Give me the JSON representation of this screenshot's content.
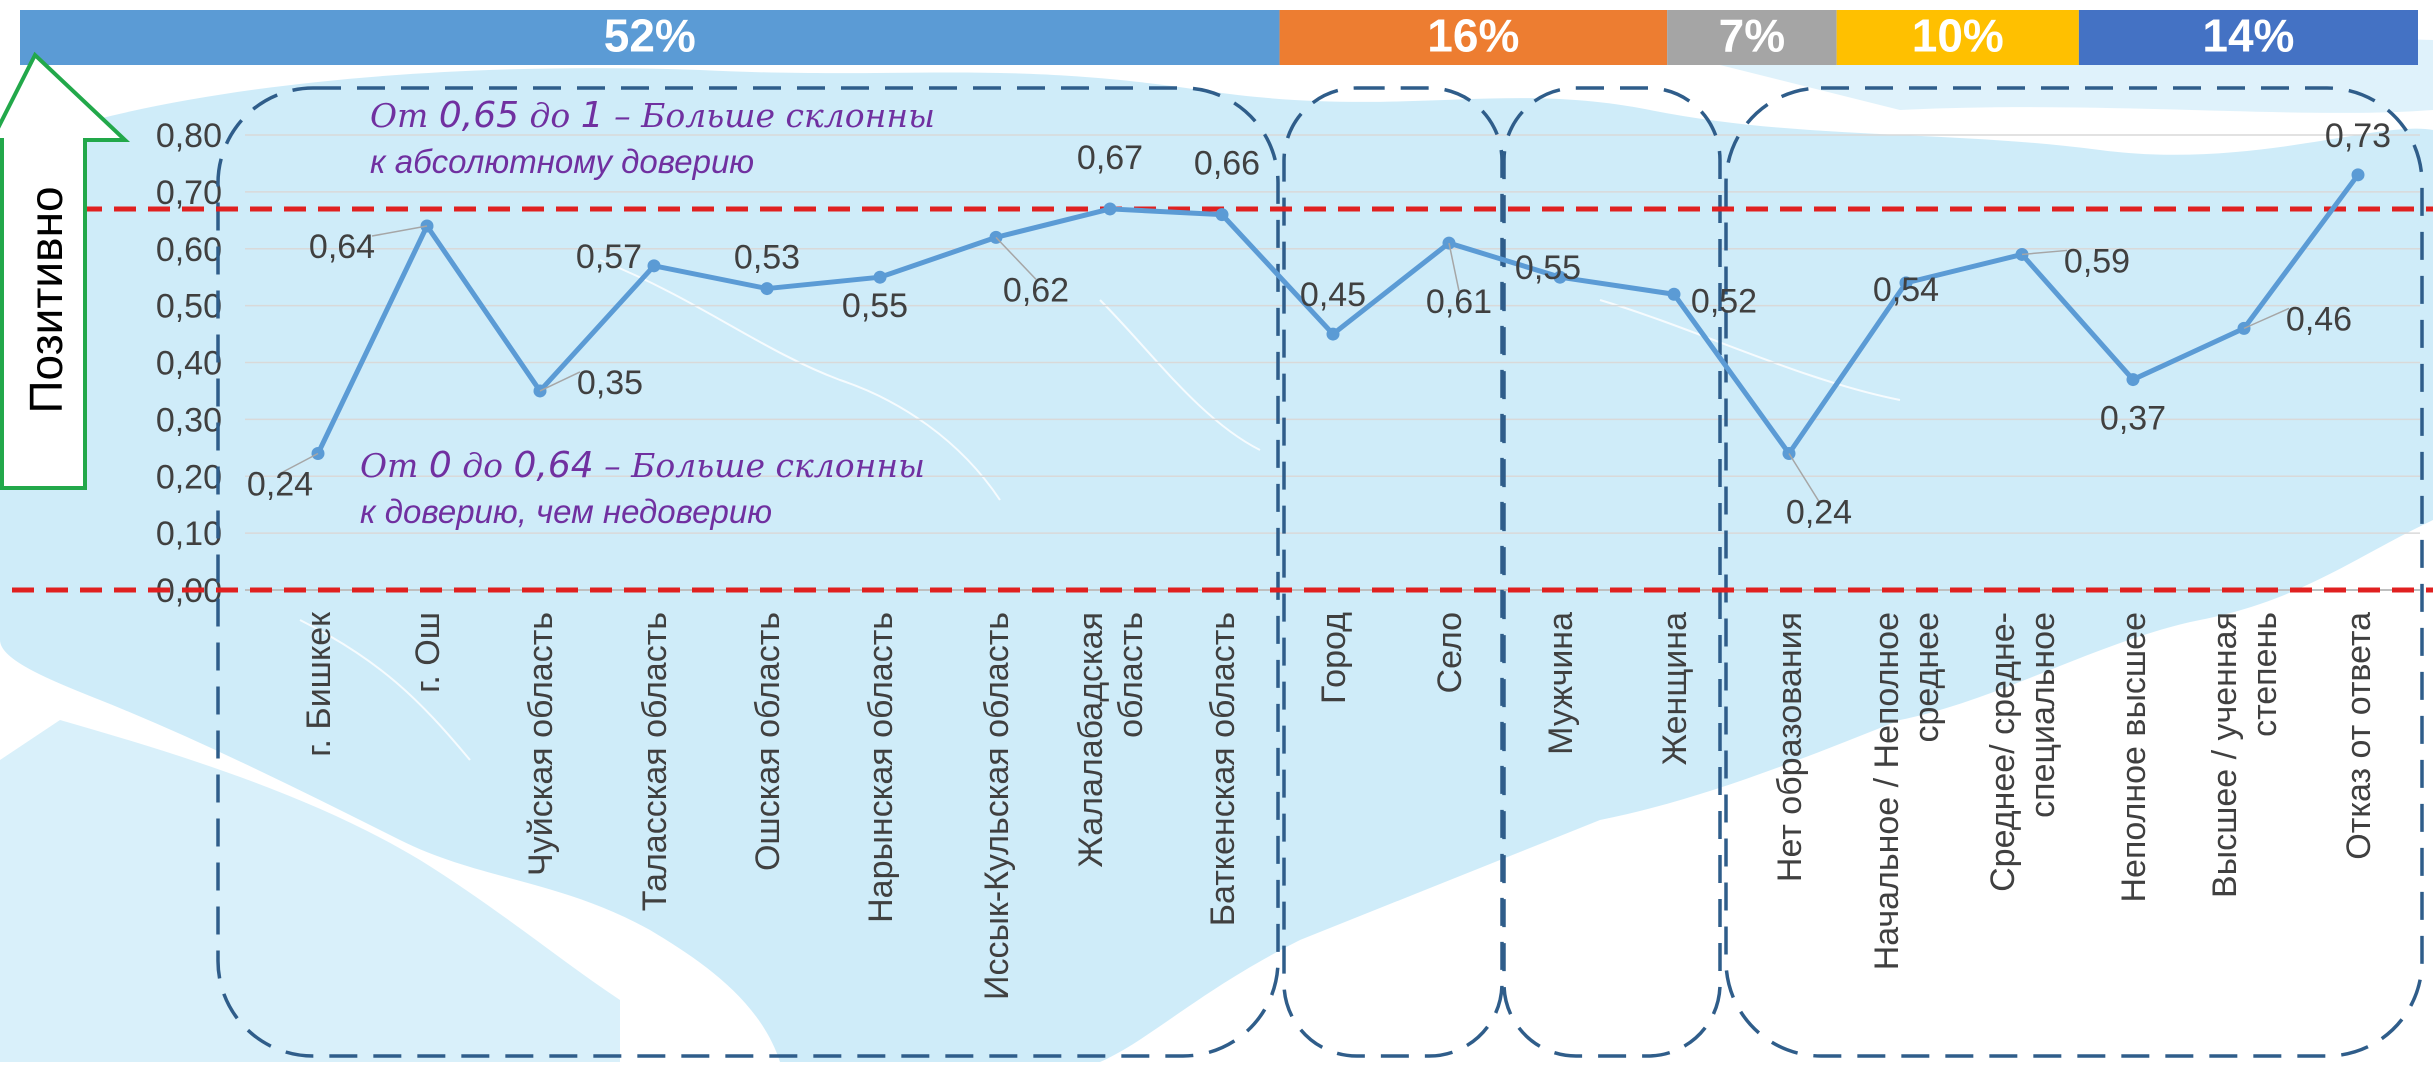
{
  "shares_bar": [
    {
      "label": "52%",
      "share": 52,
      "color": "#5b9bd5",
      "text_color": "#ffffff"
    },
    {
      "label": "16%",
      "share": 16,
      "color": "#ed7d31",
      "text_color": "#ffffff"
    },
    {
      "label": "7%",
      "share": 7,
      "color": "#a5a5a5",
      "text_color": "#ffffff"
    },
    {
      "label": "10%",
      "share": 10,
      "color": "#ffc000",
      "text_color": "#ffffff"
    },
    {
      "label": "14%",
      "share": 14,
      "color": "#4472c4",
      "text_color": "#ffffff"
    }
  ],
  "side_label": "Позитивно",
  "annotations": {
    "upper": {
      "line1_prefix": "От ",
      "line1_num1": "0,65",
      "line1_mid": " до ",
      "line1_num2": "1",
      "line1_suffix": " – Больше склонны",
      "line2": "к абсолютному доверию"
    },
    "lower": {
      "line1_prefix": "От ",
      "line1_num1": "0",
      "line1_mid": " до ",
      "line1_num2": "0,64",
      "line1_suffix": " – Больше склонны",
      "line2": "к доверию, чем недоверию"
    }
  },
  "colors": {
    "line": "#5b9bd5",
    "threshold": "#e02020",
    "annotation": "#7030a0",
    "group_border": "#2f5d8a",
    "arrow": "#22a84a",
    "map": "#bfe6f7",
    "grid": "#d9d9d9"
  },
  "chart_data": {
    "type": "line",
    "ylim": [
      0,
      0.8
    ],
    "yticks": [
      "0,00",
      "0,10",
      "0,20",
      "0,30",
      "0,40",
      "0,50",
      "0,60",
      "0,70",
      "0,80"
    ],
    "reference_lines": [
      0.67,
      0.0
    ],
    "categories": [
      [
        "г. Бишкек"
      ],
      [
        "г. Ош"
      ],
      [
        "Чуйская область"
      ],
      [
        "Таласская область"
      ],
      [
        "Ошская область"
      ],
      [
        "Нарынская область"
      ],
      [
        "Иссык-Кульская область"
      ],
      [
        "Жалалабадская",
        "область"
      ],
      [
        "Баткенская область"
      ],
      [
        "Город"
      ],
      [
        "Село"
      ],
      [
        "Мужчина"
      ],
      [
        "Женщина"
      ],
      [
        "Нет образования"
      ],
      [
        "Начальное / Неполное",
        "среднее"
      ],
      [
        "Среднее/ средне-",
        "специальное"
      ],
      [
        "Неполное высшее"
      ],
      [
        "Высшее / ученная",
        "степень"
      ],
      [
        "Отказ от ответа"
      ]
    ],
    "values": [
      0.24,
      0.64,
      0.35,
      0.57,
      0.53,
      0.55,
      0.62,
      0.67,
      0.66,
      0.45,
      0.61,
      0.55,
      0.52,
      0.24,
      0.54,
      0.59,
      0.37,
      0.46,
      0.73
    ],
    "value_labels": [
      "0,24",
      "0,64",
      "0,35",
      "0,57",
      "0,53",
      "0,55",
      "0,62",
      "0,67",
      "0,66",
      "0,45",
      "0,61",
      "0,55",
      "0,52",
      "0,24",
      "0,54",
      "0,59",
      "0,37",
      "0,46",
      "0,73"
    ],
    "groups": [
      [
        0,
        8
      ],
      [
        9,
        10
      ],
      [
        11,
        12
      ],
      [
        13,
        18
      ]
    ]
  }
}
